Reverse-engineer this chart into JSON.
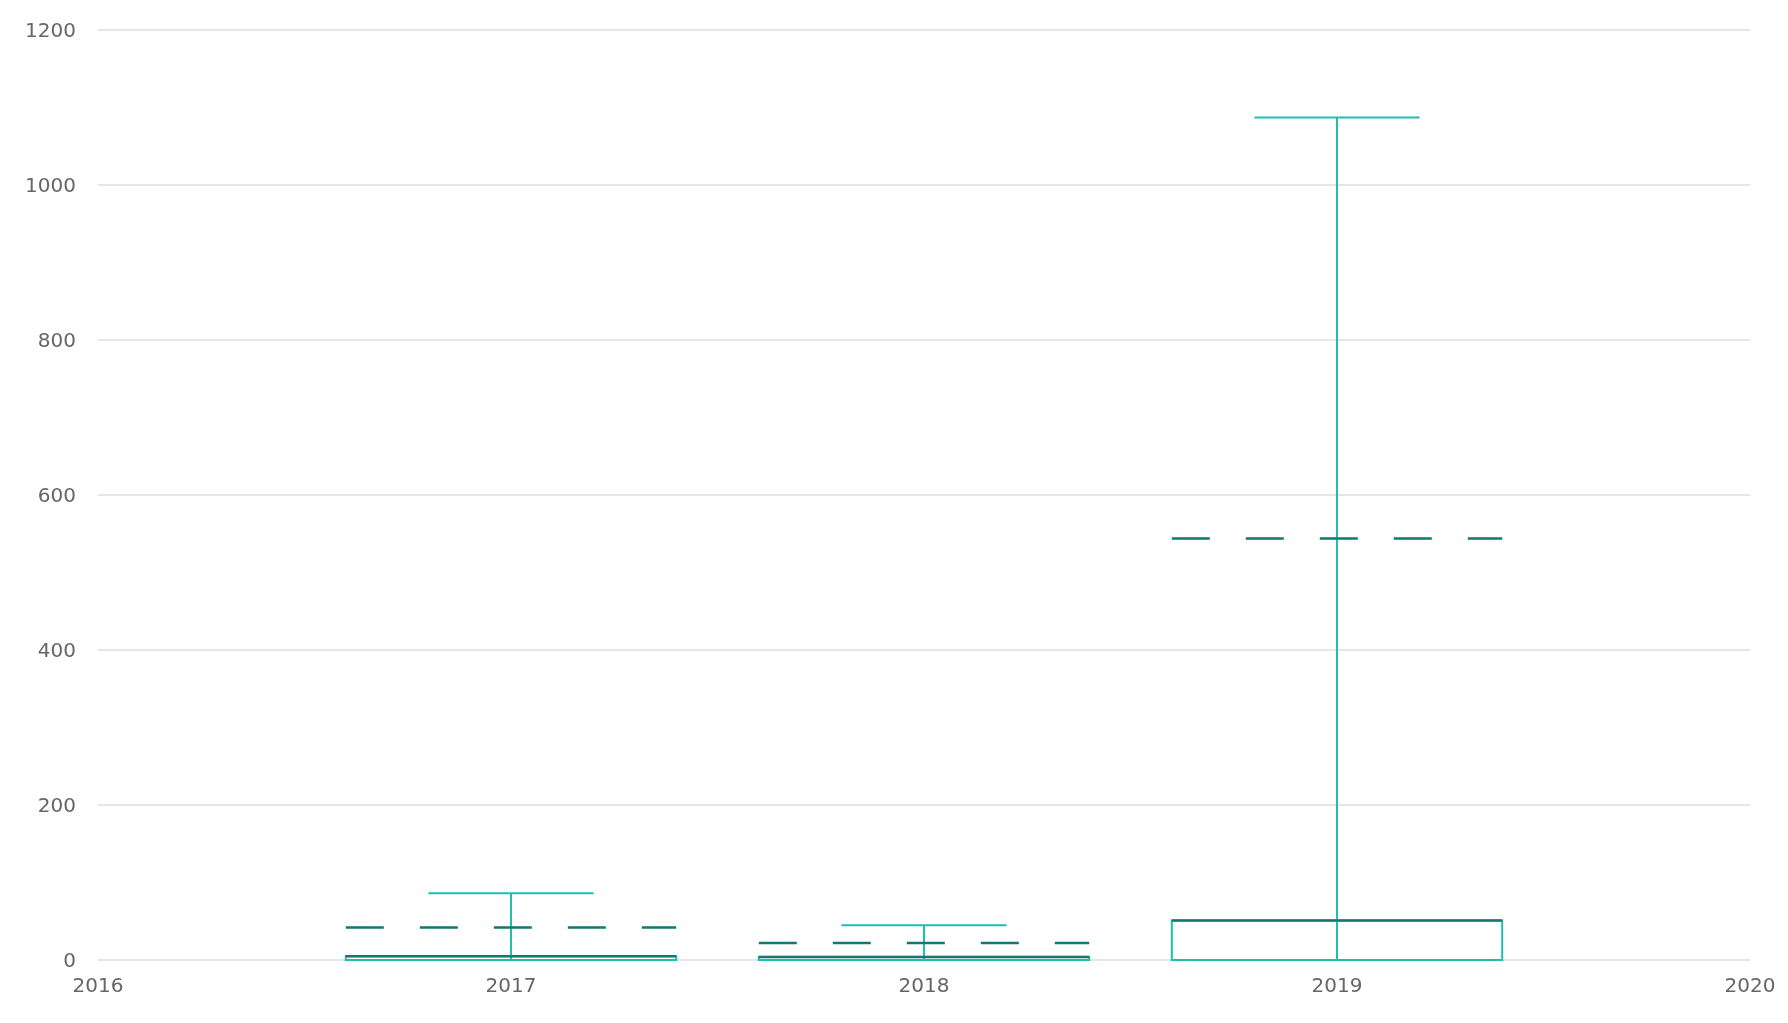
{
  "chart_data": {
    "type": "box",
    "categories": [
      "2016",
      "2017",
      "2018",
      "2019",
      "2020"
    ],
    "ylim": [
      0,
      1200
    ],
    "yticks": [
      0,
      200,
      400,
      600,
      800,
      1000,
      1200
    ],
    "grid": "y",
    "series": [
      {
        "color": "#1fbfb0",
        "boxes": [
          null,
          {
            "low": 0,
            "q1": 0,
            "median": 5,
            "q3": 5,
            "high": 86,
            "mean": 42
          },
          {
            "low": 0,
            "q1": 0,
            "median": 4,
            "q3": 4,
            "high": 45,
            "mean": 22
          },
          {
            "low": 0,
            "q1": 0,
            "median": 51,
            "q3": 51,
            "high": 1087,
            "mean": 544
          },
          null
        ]
      }
    ]
  }
}
